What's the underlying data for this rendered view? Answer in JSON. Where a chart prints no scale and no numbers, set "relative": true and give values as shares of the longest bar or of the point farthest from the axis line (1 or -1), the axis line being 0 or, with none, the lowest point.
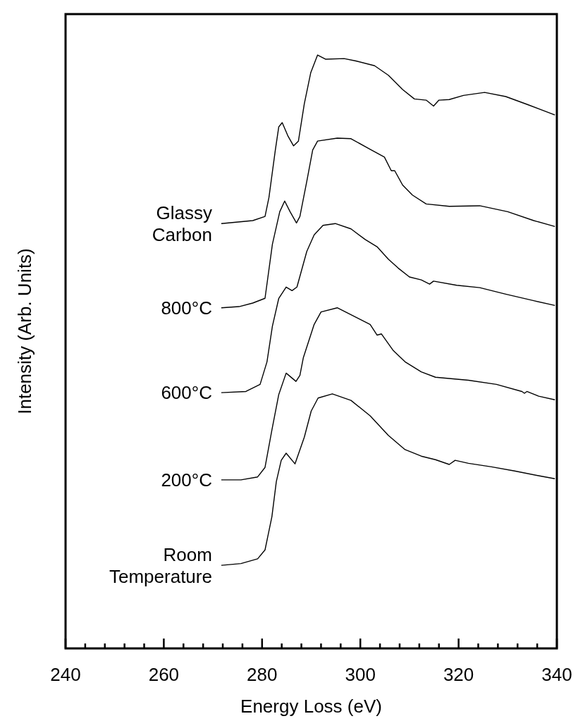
{
  "chart_data": {
    "type": "line",
    "xlabel": "Energy Loss (eV)",
    "ylabel": "Intensity (Arb. Units)",
    "relative": true,
    "xlim": [
      240,
      340
    ],
    "xticks": [
      240,
      {
        "value": 244,
        "label": null
      },
      {
        "value": 248,
        "label": null
      },
      {
        "value": 252,
        "label": null
      },
      {
        "value": 256,
        "label": null
      },
      260,
      {
        "value": 264,
        "label": null
      },
      {
        "value": 268,
        "label": null
      },
      {
        "value": 272,
        "label": null
      },
      {
        "value": 276,
        "label": null
      },
      280,
      {
        "value": 284,
        "label": null
      },
      {
        "value": 288,
        "label": null
      },
      {
        "value": 292,
        "label": null
      },
      {
        "value": 296,
        "label": null
      },
      300,
      {
        "value": 304,
        "label": null
      },
      {
        "value": 308,
        "label": null
      },
      {
        "value": 312,
        "label": null
      },
      {
        "value": 316,
        "label": null
      },
      320,
      {
        "value": 324,
        "label": null
      },
      {
        "value": 328,
        "label": null
      },
      {
        "value": 332,
        "label": null
      },
      {
        "value": 336,
        "label": null
      },
      340
    ],
    "grid": false,
    "legend": false,
    "marker": "none",
    "line_style": "solid",
    "series": [
      {
        "name": "Glassy Carbon",
        "color": "#000000",
        "x": [
          271.7,
          278.1,
          280.6,
          281.4,
          282.7,
          283.4,
          284.1,
          285.3,
          286.4,
          287.4,
          288.6,
          289.9,
          291.3,
          292.9,
          296.7,
          299.1,
          302.9,
          305.7,
          308.6,
          311.0,
          313.4,
          314.9,
          316.0,
          318.1,
          321.0,
          325.3,
          329.6,
          333.9,
          339.6
        ],
        "values": [
          0.716,
          0.721,
          0.728,
          0.76,
          0.84,
          0.879,
          0.886,
          0.863,
          0.847,
          0.855,
          0.918,
          0.97,
          1,
          0.993,
          0.994,
          0.99,
          0.982,
          0.966,
          0.942,
          0.926,
          0.924,
          0.914,
          0.924,
          0.925,
          0.932,
          0.937,
          0.93,
          0.917,
          0.899
        ]
      },
      {
        "name": "800°C",
        "color": "#000000",
        "x": [
          271.7,
          275.3,
          278.1,
          280.6,
          282.1,
          283.6,
          284.6,
          285.7,
          287.0,
          287.7,
          289.1,
          290.3,
          291.3,
          295.3,
          298.1,
          302.0,
          304.9,
          306.3,
          307.0,
          308.6,
          310.6,
          313.4,
          318.1,
          324.3,
          330.0,
          335.3,
          339.6
        ],
        "values": [
          0.574,
          0.576,
          0.582,
          0.59,
          0.681,
          0.736,
          0.754,
          0.736,
          0.717,
          0.728,
          0.787,
          0.84,
          0.855,
          0.86,
          0.859,
          0.841,
          0.828,
          0.805,
          0.805,
          0.781,
          0.764,
          0.749,
          0.745,
          0.746,
          0.736,
          0.721,
          0.711
        ]
      },
      {
        "name": "600°C",
        "color": "#000000",
        "x": [
          271.7,
          276.7,
          279.6,
          281.0,
          282.1,
          283.4,
          284.9,
          286.1,
          287.1,
          289.1,
          290.6,
          292.4,
          294.9,
          298.1,
          301.0,
          303.4,
          305.7,
          307.7,
          310.0,
          312.4,
          314.1,
          314.9,
          319.6,
          324.3,
          329.6,
          335.3,
          339.6
        ],
        "values": [
          0.431,
          0.433,
          0.445,
          0.483,
          0.543,
          0.59,
          0.609,
          0.603,
          0.609,
          0.669,
          0.697,
          0.713,
          0.716,
          0.707,
          0.689,
          0.677,
          0.656,
          0.641,
          0.626,
          0.621,
          0.614,
          0.619,
          0.612,
          0.608,
          0.597,
          0.586,
          0.578
        ]
      },
      {
        "name": "200°C",
        "color": "#000000",
        "x": [
          271.7,
          275.7,
          279.1,
          280.6,
          282.0,
          283.4,
          284.9,
          286.9,
          287.7,
          288.4,
          290.6,
          292.0,
          295.3,
          299.6,
          302.0,
          303.4,
          304.3,
          306.7,
          309.1,
          312.4,
          315.3,
          322.0,
          327.7,
          332.9,
          333.4,
          333.9,
          336.3,
          339.6
        ],
        "values": [
          0.284,
          0.284,
          0.289,
          0.305,
          0.368,
          0.428,
          0.464,
          0.45,
          0.46,
          0.49,
          0.546,
          0.567,
          0.574,
          0.556,
          0.546,
          0.528,
          0.53,
          0.502,
          0.483,
          0.466,
          0.457,
          0.452,
          0.445,
          0.433,
          0.43,
          0.433,
          0.425,
          0.419
        ]
      },
      {
        "name": "Room Temperature",
        "color": "#000000",
        "x": [
          271.7,
          275.7,
          279.1,
          280.6,
          282.0,
          282.9,
          283.9,
          284.9,
          286.7,
          288.6,
          290.0,
          291.4,
          294.3,
          298.1,
          302.0,
          305.7,
          309.1,
          312.4,
          315.3,
          318.1,
          319.3,
          322.0,
          326.7,
          331.4,
          336.3,
          339.6
        ],
        "values": [
          0.14,
          0.143,
          0.151,
          0.166,
          0.222,
          0.281,
          0.317,
          0.329,
          0.311,
          0.356,
          0.4,
          0.422,
          0.429,
          0.418,
          0.392,
          0.359,
          0.335,
          0.324,
          0.318,
          0.31,
          0.317,
          0.312,
          0.306,
          0.299,
          0.291,
          0.286
        ]
      }
    ]
  }
}
